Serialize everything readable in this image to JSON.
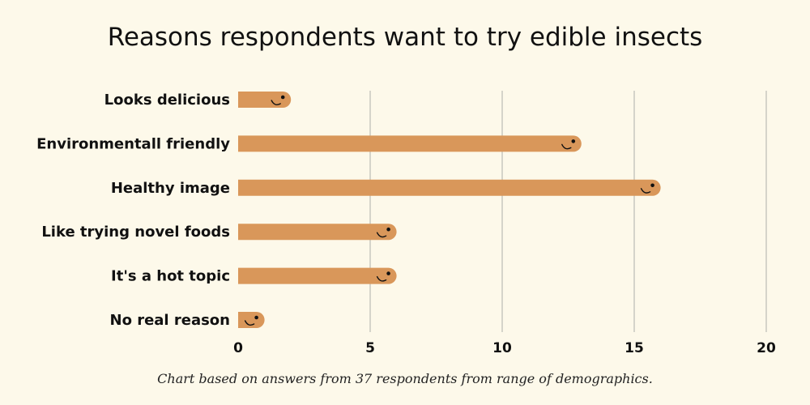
{
  "chart_data": {
    "type": "bar",
    "orientation": "horizontal",
    "title": "Reasons respondents want  to try edible insects",
    "caption": "Chart based on answers from 37 respondents from range of  demographics.",
    "categories": [
      "Looks delicious",
      "Environmentall friendly",
      "Healthy image",
      "Like trying novel foods",
      "It's a hot topic",
      "No real reason"
    ],
    "values": [
      2,
      13,
      16,
      6,
      6,
      1
    ],
    "xlim": [
      0,
      20
    ],
    "xticks": [
      "0",
      "5",
      "10",
      "15",
      "20"
    ],
    "grid": "vertical",
    "colors": {
      "bar": "#d9975a",
      "grid": "#c8c8c0",
      "background": "#fdf9ea",
      "text": "#111111"
    },
    "bar_style": "smiling-worm"
  }
}
